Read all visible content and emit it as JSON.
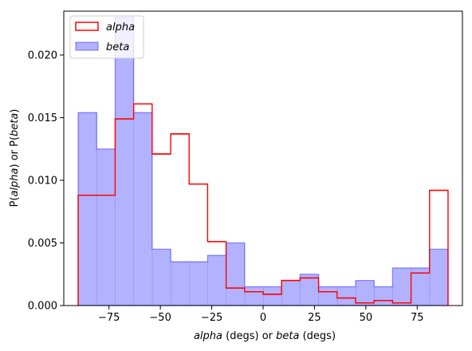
{
  "chart_data": {
    "type": "histogram",
    "xlim": [
      -97,
      97
    ],
    "ylim": [
      0,
      0.0235
    ],
    "bin_edges": [
      -90,
      -81,
      -72,
      -63,
      -54,
      -45,
      -36,
      -27,
      -18,
      -9,
      0,
      9,
      18,
      27,
      36,
      45,
      54,
      63,
      72,
      81,
      90
    ],
    "x_ticks": [
      -75,
      -50,
      -25,
      0,
      25,
      50,
      75
    ],
    "x_tick_labels": [
      "−75",
      "−50",
      "−25",
      "0",
      "25",
      "50",
      "75"
    ],
    "y_ticks": [
      0,
      0.005,
      0.01,
      0.015,
      0.02
    ],
    "y_tick_labels": [
      "0.000",
      "0.005",
      "0.010",
      "0.015",
      "0.020"
    ],
    "xlabel": {
      "italic1": "alpha",
      "plain1": " (degs) or ",
      "italic2": "beta",
      "plain2": " (degs)"
    },
    "ylabel": {
      "p1": "P(",
      "italic1": "alpha",
      "p2": ") or  P(",
      "italic2": "beta",
      "p3": ")"
    },
    "legend_position": "upper-left",
    "series": [
      {
        "name": "alpha",
        "style": "step",
        "color": "#ff0000",
        "values": [
          0.0088,
          0.0088,
          0.0149,
          0.0161,
          0.0121,
          0.0137,
          0.0097,
          0.0051,
          0.0014,
          0.0011,
          0.0009,
          0.002,
          0.0022,
          0.0011,
          0.0006,
          0.0002,
          0.0004,
          0.0002,
          0.0026,
          0.0092
        ]
      },
      {
        "name": "beta",
        "style": "stepfilled",
        "color": "#0000ff",
        "values": [
          0.0154,
          0.0125,
          0.023,
          0.0154,
          0.0045,
          0.0035,
          0.0035,
          0.004,
          0.005,
          0.0015,
          0.0015,
          0.002,
          0.0025,
          0.0015,
          0.0015,
          0.002,
          0.0015,
          0.003,
          0.003,
          0.0045
        ]
      }
    ]
  }
}
